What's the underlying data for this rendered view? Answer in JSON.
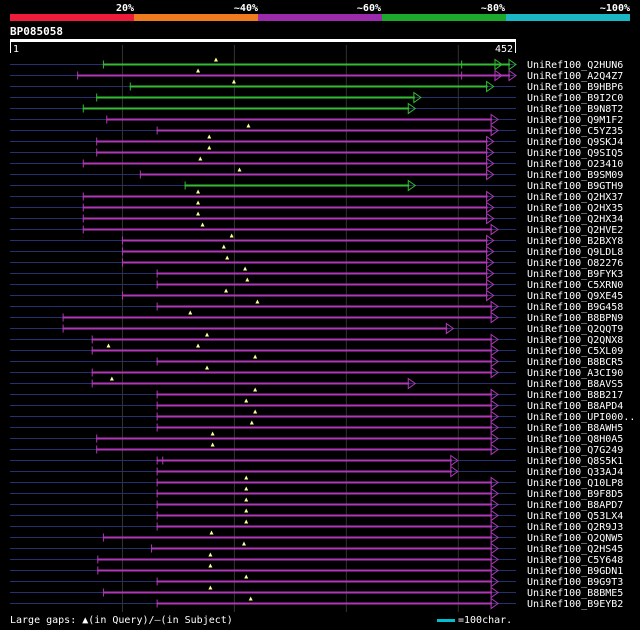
{
  "title": "BP085058",
  "colors": {
    "background": "#000000",
    "scale": [
      "#ee1c3b",
      "#ee7b1d",
      "#9c2bab",
      "#1ba82d",
      "#1ab8c4"
    ],
    "hit_green": "#33bb33",
    "hit_purple": "#b038b8",
    "query_bar": "#ffffff",
    "dashed": "#243070",
    "grid": "#333333"
  },
  "chart_data": {
    "type": "alignment-overview",
    "query_length": 452,
    "query_start_label": "1",
    "query_end_label": "452",
    "identity_scale_labels": [
      "20%",
      "~40%",
      "~60%",
      "~80%",
      "~100%"
    ],
    "grid_positions": [
      100,
      200,
      300,
      400
    ],
    "hits": [
      {
        "name": "UniRef100_Q2HUN6",
        "start": 83,
        "end": 452,
        "color": "green",
        "gaps": [
          184
        ],
        "slash": [
          403
        ],
        "double_arrow": true
      },
      {
        "name": "UniRef100_A2Q4Z7",
        "start": 60,
        "end": 452,
        "color": "purple",
        "gaps": [
          168
        ],
        "slash": [
          403
        ],
        "double_arrow": true
      },
      {
        "name": "UniRef100_B9HBP6",
        "start": 107,
        "end": 432,
        "color": "green",
        "gaps": [
          200
        ]
      },
      {
        "name": "UniRef100_B9I2C0",
        "start": 77,
        "end": 367,
        "color": "green",
        "gaps": []
      },
      {
        "name": "UniRef100_B9N8T2",
        "start": 65,
        "end": 362,
        "color": "green",
        "gaps": []
      },
      {
        "name": "UniRef100_Q9M1F2",
        "start": 86,
        "end": 436,
        "color": "purple",
        "gaps": []
      },
      {
        "name": "UniRef100_C5YZ35",
        "start": 131,
        "end": 436,
        "color": "purple",
        "gaps": [
          213
        ]
      },
      {
        "name": "UniRef100_Q9SKJ4",
        "start": 77,
        "end": 432,
        "color": "purple",
        "gaps": [
          178
        ]
      },
      {
        "name": "UniRef100_Q9SIQ5",
        "start": 77,
        "end": 432,
        "color": "purple",
        "gaps": [
          178
        ]
      },
      {
        "name": "UniRef100_O23410",
        "start": 65,
        "end": 432,
        "color": "purple",
        "gaps": [
          170
        ]
      },
      {
        "name": "UniRef100_B9SM09",
        "start": 116,
        "end": 432,
        "color": "purple",
        "gaps": [
          205
        ]
      },
      {
        "name": "UniRef100_B9GTH9",
        "start": 156,
        "end": 362,
        "color": "green",
        "gaps": []
      },
      {
        "name": "UniRef100_Q2HX37",
        "start": 65,
        "end": 432,
        "color": "purple",
        "gaps": [
          168
        ]
      },
      {
        "name": "UniRef100_Q2HX35",
        "start": 65,
        "end": 432,
        "color": "purple",
        "gaps": [
          168
        ]
      },
      {
        "name": "UniRef100_Q2HX34",
        "start": 65,
        "end": 432,
        "color": "purple",
        "gaps": [
          168
        ]
      },
      {
        "name": "UniRef100_Q2HVE2",
        "start": 65,
        "end": 436,
        "color": "purple",
        "gaps": [
          172
        ]
      },
      {
        "name": "UniRef100_B2BXY8",
        "start": 100,
        "end": 432,
        "color": "purple",
        "gaps": [
          198
        ]
      },
      {
        "name": "UniRef100_Q9LDL8",
        "start": 100,
        "end": 432,
        "color": "purple",
        "gaps": [
          191
        ]
      },
      {
        "name": "UniRef100_O82276",
        "start": 100,
        "end": 432,
        "color": "purple",
        "gaps": [
          194
        ]
      },
      {
        "name": "UniRef100_B9FYK3",
        "start": 131,
        "end": 432,
        "color": "purple",
        "gaps": [
          210
        ]
      },
      {
        "name": "UniRef100_C5XRN0",
        "start": 131,
        "end": 432,
        "color": "purple",
        "gaps": [
          212
        ]
      },
      {
        "name": "UniRef100_Q9XE45",
        "start": 100,
        "end": 432,
        "color": "purple",
        "gaps": [
          193
        ]
      },
      {
        "name": "UniRef100_B9G458",
        "start": 131,
        "end": 436,
        "color": "purple",
        "gaps": [
          221
        ]
      },
      {
        "name": "UniRef100_B8BPN9",
        "start": 47,
        "end": 436,
        "color": "purple",
        "gaps": [
          161
        ]
      },
      {
        "name": "UniRef100_Q2QQT9",
        "start": 47,
        "end": 396,
        "color": "purple",
        "gaps": []
      },
      {
        "name": "UniRef100_Q2QNX8",
        "start": 73,
        "end": 436,
        "color": "purple",
        "gaps": [
          176
        ]
      },
      {
        "name": "UniRef100_C5XL09",
        "start": 73,
        "end": 436,
        "color": "purple",
        "gaps": [
          88,
          168
        ]
      },
      {
        "name": "UniRef100_B8BCR5",
        "start": 131,
        "end": 436,
        "color": "purple",
        "gaps": [
          219
        ]
      },
      {
        "name": "UniRef100_A3CI90",
        "start": 73,
        "end": 436,
        "color": "purple",
        "gaps": [
          176
        ]
      },
      {
        "name": "UniRef100_B8AVS5",
        "start": 73,
        "end": 362,
        "color": "purple",
        "gaps": [
          91
        ]
      },
      {
        "name": "UniRef100_B8B217",
        "start": 131,
        "end": 436,
        "color": "purple",
        "gaps": [
          219
        ]
      },
      {
        "name": "UniRef100_B8APD4",
        "start": 131,
        "end": 436,
        "color": "purple",
        "gaps": [
          211
        ]
      },
      {
        "name": "UniRef100_UPI000..",
        "start": 131,
        "end": 436,
        "color": "purple",
        "gaps": [
          219
        ]
      },
      {
        "name": "UniRef100_B8AWH5",
        "start": 131,
        "end": 436,
        "color": "purple",
        "gaps": [
          216
        ]
      },
      {
        "name": "UniRef100_Q8H0A5",
        "start": 77,
        "end": 436,
        "color": "purple",
        "gaps": [
          181
        ]
      },
      {
        "name": "UniRef100_Q7G249",
        "start": 77,
        "end": 436,
        "color": "purple",
        "gaps": [
          181
        ]
      },
      {
        "name": "UniRef100_Q8S5K1",
        "start": 131,
        "end": 400,
        "color": "purple",
        "gaps": [],
        "slash": [
          136
        ]
      },
      {
        "name": "UniRef100_Q33AJ4",
        "start": 131,
        "end": 400,
        "color": "purple",
        "gaps": []
      },
      {
        "name": "UniRef100_Q10LP8",
        "start": 131,
        "end": 436,
        "color": "purple",
        "gaps": [
          211
        ]
      },
      {
        "name": "UniRef100_B9F8D5",
        "start": 131,
        "end": 436,
        "color": "purple",
        "gaps": [
          211
        ]
      },
      {
        "name": "UniRef100_B8APD7",
        "start": 131,
        "end": 436,
        "color": "purple",
        "gaps": [
          211
        ]
      },
      {
        "name": "UniRef100_Q53LX4",
        "start": 131,
        "end": 436,
        "color": "purple",
        "gaps": [
          211
        ]
      },
      {
        "name": "UniRef100_Q2R9J3",
        "start": 131,
        "end": 436,
        "color": "purple",
        "gaps": [
          211
        ]
      },
      {
        "name": "UniRef100_Q2QNW5",
        "start": 83,
        "end": 436,
        "color": "purple",
        "gaps": [
          180
        ]
      },
      {
        "name": "UniRef100_Q2HS45",
        "start": 126,
        "end": 436,
        "color": "purple",
        "gaps": [
          209
        ]
      },
      {
        "name": "UniRef100_C5Y648",
        "start": 78,
        "end": 436,
        "color": "purple",
        "gaps": [
          179
        ]
      },
      {
        "name": "UniRef100_B9GDN1",
        "start": 78,
        "end": 436,
        "color": "purple",
        "gaps": [
          179
        ]
      },
      {
        "name": "UniRef100_B9G9T3",
        "start": 131,
        "end": 436,
        "color": "purple",
        "gaps": [
          211
        ]
      },
      {
        "name": "UniRef100_B8BME5",
        "start": 83,
        "end": 436,
        "color": "purple",
        "gaps": [
          179
        ]
      },
      {
        "name": "UniRef100_B9EYB2",
        "start": 131,
        "end": 436,
        "color": "purple",
        "gaps": [
          215
        ]
      }
    ]
  },
  "footer": {
    "gaps_label": "Large gaps:",
    "in_query": "(in Query)/",
    "in_subject": "(in Subject)",
    "scale_label": "=100char."
  }
}
